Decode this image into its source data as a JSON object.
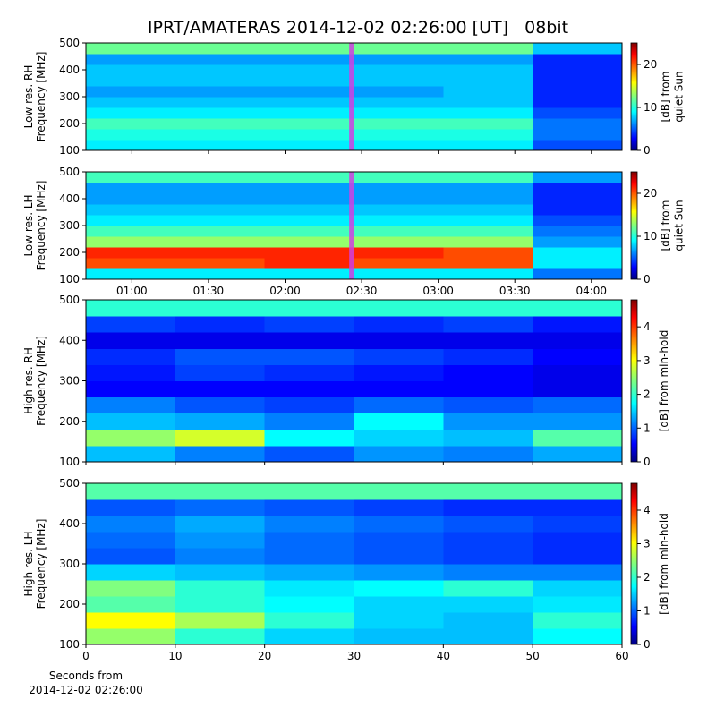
{
  "chart_data": [
    {
      "type": "heatmap",
      "title": "IPRT/AMATERAS 2014-12-02 02:26:00 [UT]   08bit",
      "ylabel": [
        "Low res. RH",
        "Frequency [MHz]"
      ],
      "xlim": [
        42,
        252
      ],
      "ylim": [
        100,
        500
      ],
      "yticks": [
        100,
        200,
        300,
        400,
        500
      ],
      "cursor": 146,
      "cursor_color": "#d040e0",
      "clim": [
        0,
        25
      ],
      "cticks": [
        0,
        10,
        20
      ],
      "clabel": [
        "[dB] from",
        "quiet Sun"
      ],
      "values": [
        [
          9,
          9,
          9,
          9,
          9,
          5
        ],
        [
          10,
          10,
          10,
          10,
          10,
          6
        ],
        [
          11,
          11,
          11,
          11,
          11,
          6
        ],
        [
          9,
          9,
          9,
          9,
          9,
          5
        ],
        [
          8,
          8,
          8,
          8,
          8,
          4
        ],
        [
          7,
          7,
          7,
          7,
          8,
          4
        ],
        [
          8,
          8,
          8,
          8,
          8,
          4
        ],
        [
          8,
          8,
          8,
          8,
          8,
          4
        ],
        [
          7,
          7,
          7,
          7,
          7,
          4
        ],
        [
          12,
          12,
          12,
          12,
          12,
          8
        ]
      ]
    },
    {
      "type": "heatmap",
      "ylabel": [
        "Low res. LH",
        "Frequency [MHz]"
      ],
      "xlim": [
        42,
        252
      ],
      "ylim": [
        100,
        500
      ],
      "yticks": [
        100,
        200,
        300,
        400,
        500
      ],
      "xticks": [
        {
          "value": 60,
          "label": "01:00"
        },
        {
          "value": 90,
          "label": "01:30"
        },
        {
          "value": 120,
          "label": "02:00"
        },
        {
          "value": 150,
          "label": "02:30"
        },
        {
          "value": 180,
          "label": "03:00"
        },
        {
          "value": 210,
          "label": "03:30"
        },
        {
          "value": 240,
          "label": "04:00"
        }
      ],
      "cursor": 146,
      "cursor_color": "#d040e0",
      "clim": [
        0,
        25
      ],
      "cticks": [
        0,
        10,
        20
      ],
      "clabel": [
        "[dB] from",
        "quiet Sun"
      ],
      "values": [
        [
          9,
          9,
          9,
          9,
          9,
          6
        ],
        [
          20,
          20,
          21,
          20,
          20,
          9
        ],
        [
          21,
          21,
          21,
          21,
          20,
          9
        ],
        [
          13,
          13,
          13,
          13,
          13,
          7
        ],
        [
          11,
          11,
          11,
          11,
          11,
          6
        ],
        [
          9,
          9,
          9,
          9,
          9,
          5
        ],
        [
          8,
          8,
          8,
          8,
          8,
          4
        ],
        [
          7,
          7,
          7,
          7,
          7,
          4
        ],
        [
          7,
          7,
          7,
          7,
          7,
          4
        ],
        [
          11,
          11,
          11,
          11,
          11,
          7
        ]
      ]
    },
    {
      "type": "heatmap",
      "ylabel": [
        "High res. RH",
        "Frequency [MHz]"
      ],
      "xlim": [
        0,
        60
      ],
      "ylim": [
        100,
        500
      ],
      "yticks": [
        100,
        200,
        300,
        400,
        500
      ],
      "clim": [
        0,
        4.8
      ],
      "cticks": [
        0,
        1,
        2,
        3,
        4
      ],
      "clabel": [
        "[dB] from min-hold"
      ],
      "values": [
        [
          1.5,
          1.2,
          1.0,
          1.3,
          1.2,
          1.4
        ],
        [
          2.5,
          2.8,
          1.8,
          1.6,
          1.5,
          2.2
        ],
        [
          1.5,
          1.4,
          1.2,
          1.8,
          1.3,
          1.3
        ],
        [
          1.2,
          1.0,
          0.9,
          1.1,
          1.0,
          1.1
        ],
        [
          0.6,
          0.6,
          0.6,
          0.6,
          0.6,
          0.5
        ],
        [
          0.7,
          0.9,
          0.8,
          0.7,
          0.6,
          0.5
        ],
        [
          0.8,
          1.0,
          1.0,
          0.9,
          0.8,
          0.6
        ],
        [
          0.5,
          0.5,
          0.5,
          0.5,
          0.5,
          0.5
        ],
        [
          0.9,
          0.8,
          0.9,
          0.8,
          0.9,
          0.7
        ],
        [
          2.0,
          2.0,
          2.0,
          2.0,
          2.0,
          2.0
        ]
      ]
    },
    {
      "type": "heatmap",
      "ylabel": [
        "High res. LH",
        "Frequency [MHz]"
      ],
      "xlabel": [
        "Seconds from",
        "2014-12-02 02:26:00"
      ],
      "xlim": [
        0,
        60
      ],
      "ylim": [
        100,
        500
      ],
      "yticks": [
        100,
        200,
        300,
        400,
        500
      ],
      "xticks": [
        0,
        10,
        20,
        30,
        40,
        50,
        60
      ],
      "clim": [
        0,
        4.8
      ],
      "cticks": [
        0,
        1,
        2,
        3,
        4
      ],
      "clabel": [
        "[dB] from min-hold"
      ],
      "values": [
        [
          2.5,
          2.0,
          1.6,
          1.5,
          1.5,
          1.8
        ],
        [
          3.0,
          2.6,
          2.0,
          1.6,
          1.5,
          2.0
        ],
        [
          2.2,
          2.0,
          1.8,
          1.6,
          1.6,
          1.7
        ],
        [
          2.4,
          2.0,
          1.7,
          1.8,
          2.0,
          1.6
        ],
        [
          1.6,
          1.5,
          1.4,
          1.3,
          1.2,
          1.2
        ],
        [
          1.0,
          1.2,
          1.1,
          1.0,
          0.9,
          0.8
        ],
        [
          1.1,
          1.3,
          1.1,
          1.0,
          0.9,
          0.8
        ],
        [
          1.2,
          1.4,
          1.2,
          1.1,
          1.0,
          0.9
        ],
        [
          1.0,
          1.1,
          1.0,
          0.9,
          0.8,
          0.8
        ],
        [
          2.2,
          2.2,
          2.2,
          2.2,
          2.2,
          2.2
        ]
      ]
    }
  ]
}
